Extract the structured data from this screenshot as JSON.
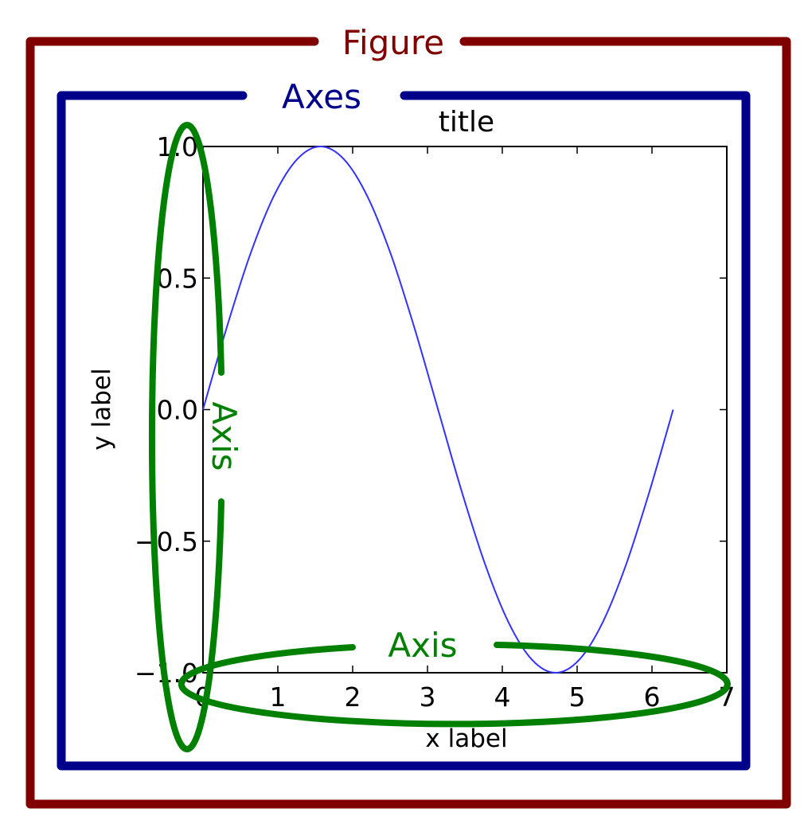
{
  "annotations": {
    "figure_label": "Figure",
    "axes_label": "Axes",
    "axis_label_x": "Axis",
    "axis_label_y": "Axis"
  },
  "colors": {
    "figure": "#800000",
    "axes": "#00008b",
    "axis": "#008000",
    "line": "#3333ff",
    "frame": "#000000"
  },
  "chart_data": {
    "type": "line",
    "title": "title",
    "xlabel": "x label",
    "ylabel": "y label",
    "xlim": [
      0,
      7
    ],
    "ylim": [
      -1.0,
      1.0
    ],
    "x_ticks": [
      "0",
      "1",
      "2",
      "3",
      "4",
      "5",
      "6",
      "7"
    ],
    "y_ticks": [
      "−1.0",
      "−0.5",
      "0.0",
      "0.5",
      "1.0"
    ],
    "grid": false,
    "series": [
      {
        "function": "sin(x)",
        "x": [
          0.0,
          0.3142,
          0.6283,
          0.9425,
          1.2566,
          1.5708,
          1.885,
          2.1991,
          2.5133,
          2.8274,
          3.1416,
          3.4558,
          3.7699,
          4.0841,
          4.3982,
          4.7124,
          5.0265,
          5.3407,
          5.6549,
          5.969,
          6.2832
        ],
        "y": [
          0.0,
          0.309,
          0.5878,
          0.809,
          0.9511,
          1.0,
          0.9511,
          0.809,
          0.5878,
          0.309,
          0.0,
          -0.309,
          -0.5878,
          -0.809,
          -0.9511,
          -1.0,
          -0.9511,
          -0.809,
          -0.5878,
          -0.309,
          0.0
        ]
      }
    ]
  }
}
